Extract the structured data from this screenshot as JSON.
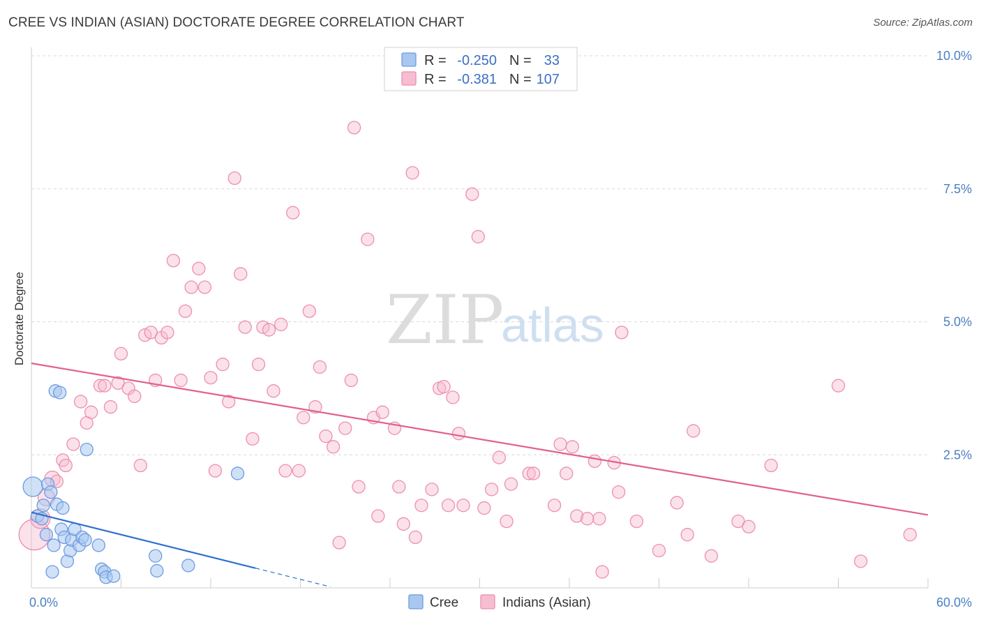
{
  "header": {
    "title": "CREE VS INDIAN (ASIAN) DOCTORATE DEGREE CORRELATION CHART",
    "source": "Source: ZipAtlas.com"
  },
  "watermark": {
    "zip": "ZIP",
    "atlas": "atlas"
  },
  "colors": {
    "cree_fill": "#a9c8f0",
    "cree_stroke": "#6c9be0",
    "cree_line": "#2d6fce",
    "indian_fill": "#f7bdd0",
    "indian_stroke": "#ec8fb0",
    "indian_line": "#e0608f",
    "tick": "#4a7fc0",
    "grid": "#d8d8d8"
  },
  "legend": {
    "rows": [
      {
        "r_label": "R = ",
        "r_value": "-0.250",
        "n_label": "N = ",
        "n_value": "33"
      },
      {
        "r_label": "R = ",
        "r_value": "-0.381",
        "n_label": "N = ",
        "n_value": "107"
      }
    ]
  },
  "chart_data": {
    "type": "scatter",
    "title": "CREE VS INDIAN (ASIAN) DOCTORATE DEGREE CORRELATION CHART",
    "xlabel": "",
    "ylabel": "Doctorate Degree",
    "xlim": [
      0,
      60
    ],
    "ylim": [
      0,
      10
    ],
    "x_tick_labels": [
      "0.0%",
      "60.0%"
    ],
    "y_ticks": [
      2.5,
      5.0,
      7.5,
      10.0
    ],
    "y_tick_labels": [
      "2.5%",
      "5.0%",
      "7.5%",
      "10.0%"
    ],
    "series": [
      {
        "name": "Cree",
        "r": -0.25,
        "n": 33,
        "trend": {
          "x": [
            0,
            15.0
          ],
          "y": [
            1.42,
            0.37
          ]
        },
        "trend_dashed": {
          "x": [
            15.0,
            20.0
          ],
          "y": [
            0.37,
            0.02
          ]
        },
        "points": [
          [
            0.1,
            1.9,
            14
          ],
          [
            0.4,
            1.35,
            9
          ],
          [
            0.7,
            1.3,
            9
          ],
          [
            0.8,
            1.55,
            9
          ],
          [
            1.0,
            1.0,
            9
          ],
          [
            1.1,
            1.95,
            9
          ],
          [
            1.3,
            1.8,
            9
          ],
          [
            1.4,
            0.3,
            9
          ],
          [
            1.5,
            0.8,
            9
          ],
          [
            1.6,
            3.7,
            9
          ],
          [
            1.7,
            1.57,
            9
          ],
          [
            1.9,
            3.67,
            9
          ],
          [
            2.0,
            1.1,
            9
          ],
          [
            2.1,
            1.5,
            9
          ],
          [
            2.2,
            0.95,
            9
          ],
          [
            2.4,
            0.5,
            9
          ],
          [
            2.6,
            0.7,
            9
          ],
          [
            2.7,
            0.9,
            9
          ],
          [
            2.9,
            1.1,
            9
          ],
          [
            3.2,
            0.8,
            9
          ],
          [
            3.4,
            0.95,
            9
          ],
          [
            3.6,
            0.9,
            9
          ],
          [
            3.7,
            2.6,
            9
          ],
          [
            4.5,
            0.8,
            9
          ],
          [
            4.7,
            0.35,
            9
          ],
          [
            4.9,
            0.3,
            9
          ],
          [
            5.0,
            0.2,
            9
          ],
          [
            5.5,
            0.22,
            9
          ],
          [
            8.3,
            0.6,
            9
          ],
          [
            8.4,
            0.32,
            9
          ],
          [
            10.5,
            0.42,
            9
          ],
          [
            13.8,
            2.15,
            9
          ]
        ]
      },
      {
        "name": "Indians (Asian)",
        "r": -0.381,
        "n": 107,
        "trend": {
          "x": [
            0,
            60
          ],
          "y": [
            4.22,
            1.37
          ]
        },
        "points": [
          [
            0.2,
            1.0,
            22
          ],
          [
            0.6,
            1.3,
            14
          ],
          [
            1.0,
            1.7,
            12
          ],
          [
            1.4,
            2.05,
            11
          ],
          [
            1.7,
            2.0,
            9
          ],
          [
            2.1,
            2.4,
            9
          ],
          [
            2.3,
            2.3,
            9
          ],
          [
            2.8,
            2.7,
            9
          ],
          [
            3.3,
            3.5,
            9
          ],
          [
            3.7,
            3.1,
            9
          ],
          [
            4.0,
            3.3,
            9
          ],
          [
            4.6,
            3.8,
            9
          ],
          [
            4.9,
            3.8,
            9
          ],
          [
            5.3,
            3.4,
            9
          ],
          [
            5.8,
            3.85,
            9
          ],
          [
            6.0,
            4.4,
            9
          ],
          [
            6.5,
            3.75,
            9
          ],
          [
            6.9,
            3.6,
            9
          ],
          [
            7.3,
            2.3,
            9
          ],
          [
            7.6,
            4.75,
            9
          ],
          [
            8.0,
            4.8,
            9
          ],
          [
            8.3,
            3.9,
            9
          ],
          [
            8.7,
            4.7,
            9
          ],
          [
            9.1,
            4.8,
            9
          ],
          [
            9.5,
            6.15,
            9
          ],
          [
            10.0,
            3.9,
            9
          ],
          [
            10.3,
            5.2,
            9
          ],
          [
            10.7,
            5.65,
            9
          ],
          [
            11.2,
            6.0,
            9
          ],
          [
            11.6,
            5.65,
            9
          ],
          [
            12.0,
            3.95,
            9
          ],
          [
            12.3,
            2.2,
            9
          ],
          [
            12.8,
            4.2,
            9
          ],
          [
            13.2,
            3.5,
            9
          ],
          [
            13.6,
            7.7,
            9
          ],
          [
            14.0,
            5.9,
            9
          ],
          [
            14.3,
            4.9,
            9
          ],
          [
            14.8,
            2.8,
            9
          ],
          [
            15.2,
            4.2,
            9
          ],
          [
            15.5,
            4.9,
            9
          ],
          [
            15.9,
            4.85,
            9
          ],
          [
            16.2,
            3.7,
            9
          ],
          [
            16.7,
            4.95,
            9
          ],
          [
            17.0,
            2.2,
            9
          ],
          [
            17.5,
            7.05,
            9
          ],
          [
            17.9,
            2.2,
            9
          ],
          [
            18.2,
            3.2,
            9
          ],
          [
            18.6,
            5.2,
            9
          ],
          [
            19.0,
            3.4,
            9
          ],
          [
            19.3,
            4.15,
            9
          ],
          [
            19.7,
            2.85,
            9
          ],
          [
            20.2,
            2.65,
            9
          ],
          [
            20.6,
            0.85,
            9
          ],
          [
            21.0,
            3.0,
            9
          ],
          [
            21.4,
            3.9,
            9
          ],
          [
            21.6,
            8.65,
            9
          ],
          [
            21.9,
            1.9,
            9
          ],
          [
            22.5,
            6.55,
            9
          ],
          [
            22.9,
            3.2,
            9
          ],
          [
            23.2,
            1.35,
            9
          ],
          [
            23.5,
            3.3,
            9
          ],
          [
            24.3,
            3.0,
            9
          ],
          [
            24.6,
            1.9,
            9
          ],
          [
            24.9,
            1.2,
            9
          ],
          [
            25.5,
            7.8,
            9
          ],
          [
            25.7,
            0.95,
            9
          ],
          [
            26.1,
            1.55,
            9
          ],
          [
            26.8,
            1.85,
            9
          ],
          [
            27.3,
            3.75,
            9
          ],
          [
            27.6,
            3.78,
            9
          ],
          [
            27.9,
            1.55,
            9
          ],
          [
            28.2,
            3.58,
            9
          ],
          [
            28.6,
            2.9,
            9
          ],
          [
            28.9,
            1.55,
            9
          ],
          [
            29.5,
            7.4,
            9
          ],
          [
            29.9,
            6.6,
            9
          ],
          [
            30.3,
            1.5,
            9
          ],
          [
            30.8,
            1.85,
            9
          ],
          [
            31.3,
            2.45,
            9
          ],
          [
            31.8,
            1.25,
            9
          ],
          [
            32.1,
            1.95,
            9
          ],
          [
            33.3,
            2.15,
            9
          ],
          [
            33.6,
            2.15,
            9
          ],
          [
            35.0,
            1.55,
            9
          ],
          [
            35.4,
            2.7,
            9
          ],
          [
            35.8,
            2.15,
            9
          ],
          [
            36.2,
            2.65,
            9
          ],
          [
            36.5,
            1.35,
            9
          ],
          [
            37.2,
            1.3,
            9
          ],
          [
            37.7,
            2.38,
            9
          ],
          [
            38.0,
            1.3,
            9
          ],
          [
            38.2,
            0.3,
            9
          ],
          [
            39.0,
            2.35,
            9
          ],
          [
            39.3,
            1.8,
            9
          ],
          [
            39.5,
            4.8,
            9
          ],
          [
            40.5,
            1.25,
            9
          ],
          [
            42.0,
            0.7,
            9
          ],
          [
            43.2,
            1.6,
            9
          ],
          [
            43.9,
            1.0,
            9
          ],
          [
            44.3,
            2.95,
            9
          ],
          [
            45.5,
            0.6,
            9
          ],
          [
            47.3,
            1.25,
            9
          ],
          [
            48.0,
            1.15,
            9
          ],
          [
            49.5,
            2.3,
            9
          ],
          [
            54.0,
            3.8,
            9
          ],
          [
            55.5,
            0.5,
            9
          ],
          [
            58.8,
            1.0,
            9
          ]
        ]
      }
    ]
  },
  "bottom_legend": {
    "items": [
      {
        "label": "Cree"
      },
      {
        "label": "Indians (Asian)"
      }
    ]
  }
}
